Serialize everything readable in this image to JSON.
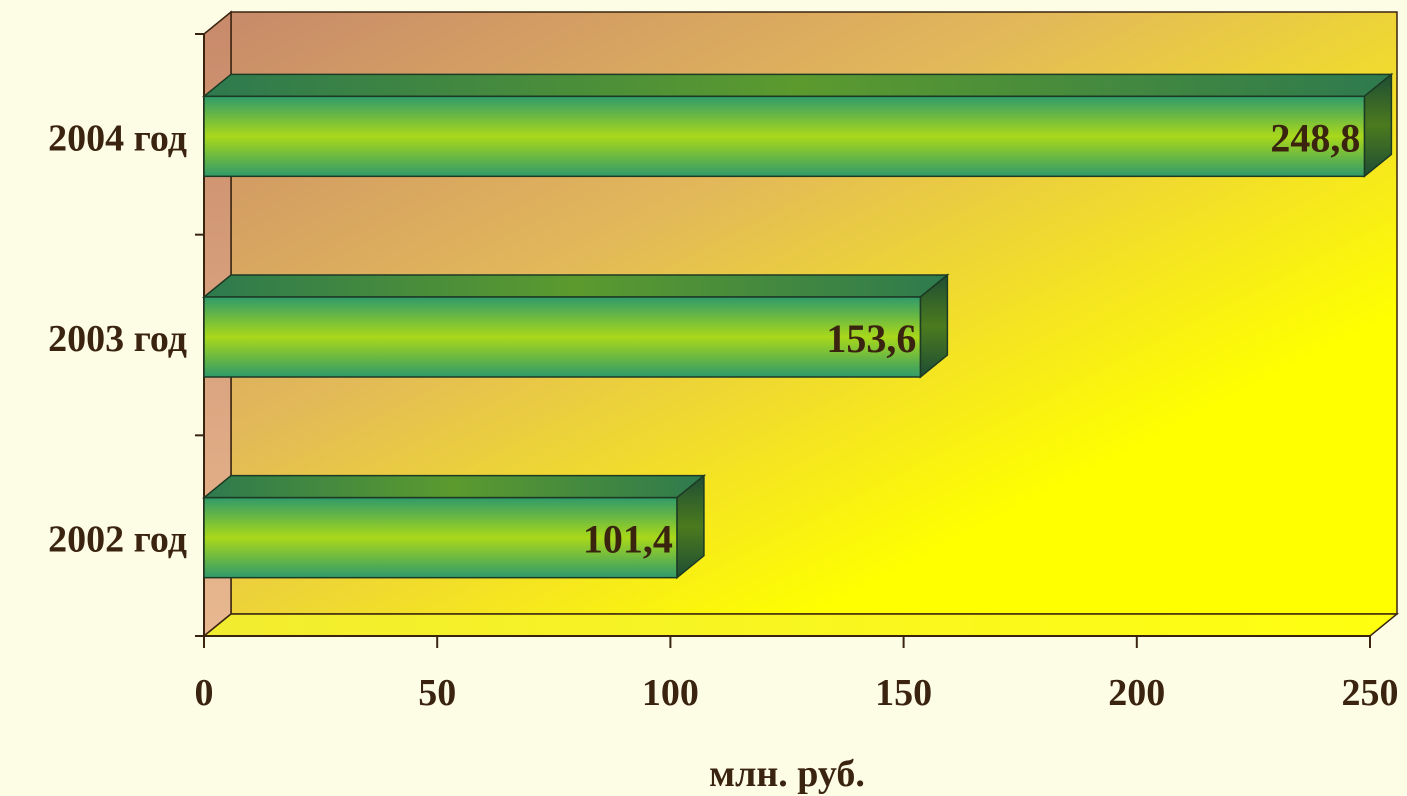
{
  "chart_data": {
    "type": "bar",
    "orientation": "horizontal",
    "three_d": true,
    "categories": [
      "2004 год",
      "2003 год",
      "2002 год"
    ],
    "values": [
      248.8,
      153.6,
      101.4
    ],
    "value_labels": [
      "248,8",
      "153,6",
      "101,4"
    ],
    "xlabel": "млн. руб.",
    "ylabel": "",
    "xlim": [
      0,
      250
    ],
    "x_ticks": [
      "0",
      "50",
      "100",
      "150",
      "200",
      "250"
    ],
    "grid": false,
    "legend": "none",
    "colors": {
      "bar_edge": "#2f9a6a",
      "bar_center": "#a9d81a",
      "bar_side": "#245a3a",
      "bar_top": "#2e7a4e",
      "wall_left": "#c88a6a",
      "wall_right": "#ffff00",
      "floor": "#ffff20",
      "text": "#3a2410",
      "page_bg": "#fdfde6"
    }
  }
}
